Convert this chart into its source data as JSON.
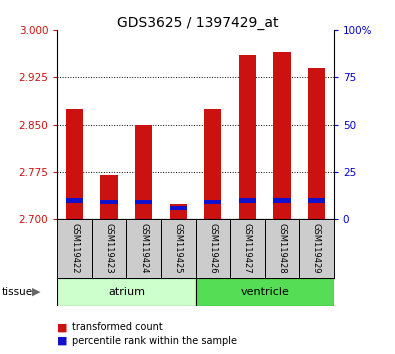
{
  "title": "GDS3625 / 1397429_at",
  "samples": [
    "GSM119422",
    "GSM119423",
    "GSM119424",
    "GSM119425",
    "GSM119426",
    "GSM119427",
    "GSM119428",
    "GSM119429"
  ],
  "tissue_groups": [
    {
      "label": "atrium",
      "color": "#ccffcc"
    },
    {
      "label": "ventricle",
      "color": "#55dd55"
    }
  ],
  "red_bar_top": [
    2.875,
    2.77,
    2.85,
    2.725,
    2.875,
    2.96,
    2.965,
    2.94
  ],
  "blue_marker": [
    2.73,
    2.728,
    2.728,
    2.718,
    2.728,
    2.73,
    2.73,
    2.73
  ],
  "bar_bottom": 2.7,
  "ylim_left": [
    2.7,
    3.0
  ],
  "yticks_left": [
    2.7,
    2.775,
    2.85,
    2.925,
    3.0
  ],
  "ylim_right": [
    0,
    100
  ],
  "yticks_right": [
    0,
    25,
    50,
    75,
    100
  ],
  "yticklabels_right": [
    "0",
    "25",
    "50",
    "75",
    "100%"
  ],
  "red_color": "#cc1111",
  "blue_color": "#1111cc",
  "bar_width": 0.5,
  "sample_box_color": "#cccccc",
  "tissue_label": "tissue",
  "legend_items": [
    "transformed count",
    "percentile rank within the sample"
  ],
  "left_tick_color": "#cc1111",
  "right_tick_color": "#0000cc",
  "grid_yticks": [
    2.775,
    2.85,
    2.925
  ]
}
